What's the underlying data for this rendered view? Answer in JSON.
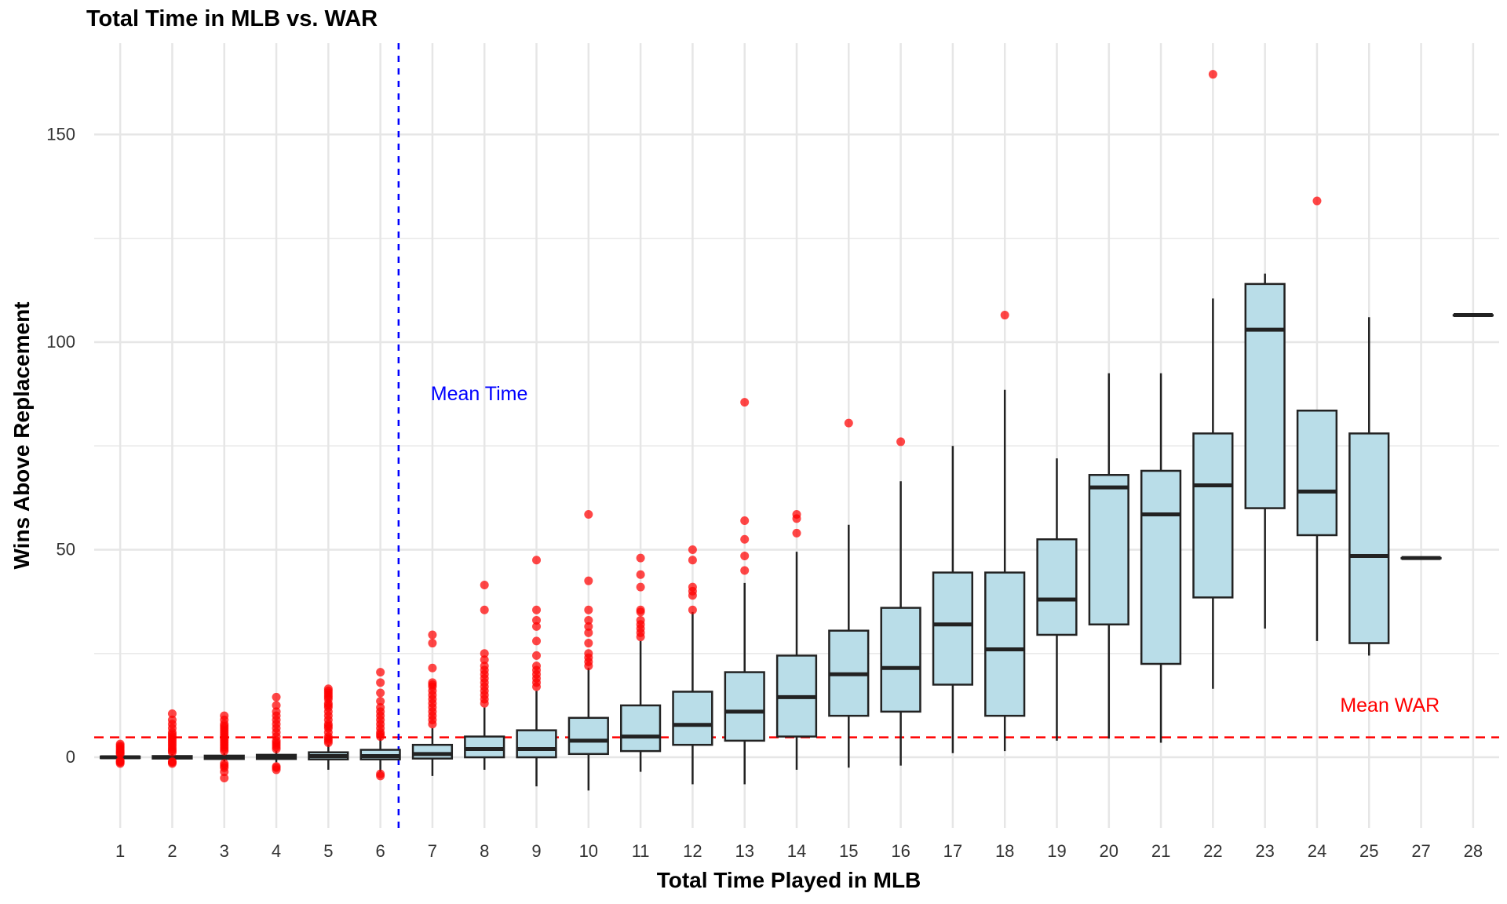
{
  "chart_data": {
    "type": "boxplot",
    "title": "Total Time in MLB vs. WAR",
    "xlabel": "Total Time Played in MLB",
    "ylabel": "Wins Above Replacement",
    "ylim": [
      -17,
      172
    ],
    "yticks": [
      0,
      50,
      100,
      150
    ],
    "grid": true,
    "colors": {
      "box_fill": "#b9dde8",
      "box_stroke": "#222222",
      "outlier": "#ff0000",
      "mean_war_line": "#ff0000",
      "mean_time_line": "#0000ff",
      "grid": "#e6e6e6",
      "axis_text": "#333333"
    },
    "categories": [
      "1",
      "2",
      "3",
      "4",
      "5",
      "6",
      "7",
      "8",
      "9",
      "10",
      "11",
      "12",
      "13",
      "14",
      "15",
      "16",
      "17",
      "18",
      "19",
      "20",
      "21",
      "22",
      "23",
      "24",
      "25",
      "27",
      "28"
    ],
    "boxes": [
      {
        "q1": -0.2,
        "median": 0.0,
        "q3": 0.2,
        "lower": -0.5,
        "upper": 0.6,
        "outliers": [
          -1.5,
          -1.2,
          -1.0,
          -0.8,
          0.8,
          1.0,
          1.3,
          1.6,
          2.0,
          2.4,
          2.8,
          3.2
        ]
      },
      {
        "q1": -0.3,
        "median": 0.0,
        "q3": 0.3,
        "lower": -0.8,
        "upper": 0.8,
        "outliers": [
          -1.5,
          -1.2,
          -1.0,
          1.2,
          1.6,
          2.0,
          2.5,
          3.0,
          3.5,
          4.0,
          4.5,
          5.0,
          5.5,
          6.0,
          7.0,
          8.0,
          9.0,
          10.5
        ]
      },
      {
        "q1": -0.4,
        "median": 0.0,
        "q3": 0.4,
        "lower": -1.0,
        "upper": 1.0,
        "outliers": [
          -5.0,
          -3.5,
          -2.5,
          -2.0,
          -1.5,
          1.5,
          2.0,
          2.5,
          3.0,
          3.5,
          4.0,
          4.5,
          5.0,
          5.5,
          6.0,
          6.5,
          7.0,
          7.5,
          8.0,
          9.0,
          10.0
        ]
      },
      {
        "q1": -0.4,
        "median": 0.2,
        "q3": 0.6,
        "lower": -1.2,
        "upper": 1.5,
        "outliers": [
          -3.0,
          -2.5,
          -2.2,
          2.0,
          2.5,
          3.0,
          3.5,
          4.0,
          5.0,
          6.0,
          7.0,
          8.0,
          9.0,
          10.0,
          11.0,
          12.5,
          14.5
        ]
      },
      {
        "q1": -0.5,
        "median": 0.3,
        "q3": 1.2,
        "lower": -3.0,
        "upper": 3.0,
        "outliers": [
          3.5,
          4.0,
          4.5,
          5.0,
          6.0,
          7.0,
          7.5,
          8.0,
          9.0,
          10.0,
          11.0,
          12.0,
          12.5,
          13.0,
          14.0,
          14.5,
          15.0,
          15.5,
          16.0,
          16.5
        ]
      },
      {
        "q1": -0.5,
        "median": 0.3,
        "q3": 1.8,
        "lower": -3.5,
        "upper": 4.5,
        "outliers": [
          -4.5,
          -4.0,
          5.0,
          5.5,
          6.0,
          7.0,
          8.0,
          9.0,
          10.0,
          11.0,
          12.0,
          13.5,
          15.5,
          18.0,
          20.5
        ]
      },
      {
        "q1": -0.3,
        "median": 0.8,
        "q3": 3.0,
        "lower": -4.5,
        "upper": 7.0,
        "outliers": [
          8.0,
          9.0,
          10.0,
          11.0,
          12.0,
          13.0,
          14.0,
          15.0,
          16.0,
          17.0,
          17.5,
          18.0,
          21.5,
          27.5,
          29.5
        ]
      },
      {
        "q1": 0.0,
        "median": 2.0,
        "q3": 5.0,
        "lower": -3.0,
        "upper": 12.0,
        "outliers": [
          13.0,
          14.0,
          15.0,
          16.0,
          17.0,
          18.0,
          19.0,
          20.0,
          21.0,
          22.0,
          23.5,
          25.0,
          35.5,
          41.5
        ]
      },
      {
        "q1": 0.0,
        "median": 2.0,
        "q3": 6.5,
        "lower": -7.0,
        "upper": 16.0,
        "outliers": [
          17.0,
          18.0,
          19.0,
          20.0,
          21.0,
          22.0,
          24.5,
          28.0,
          31.5,
          33.0,
          35.5,
          47.5
        ]
      },
      {
        "q1": 0.8,
        "median": 4.0,
        "q3": 9.5,
        "lower": -8.0,
        "upper": 21.5,
        "outliers": [
          22.0,
          23.0,
          24.0,
          25.0,
          27.5,
          30.0,
          31.5,
          33.0,
          35.5,
          42.5,
          58.5
        ]
      },
      {
        "q1": 1.5,
        "median": 5.0,
        "q3": 12.5,
        "lower": -3.5,
        "upper": 28.0,
        "outliers": [
          29.0,
          30.0,
          31.0,
          32.0,
          33.0,
          35.0,
          35.5,
          41.0,
          44.0,
          48.0
        ]
      },
      {
        "q1": 3.0,
        "median": 7.8,
        "q3": 15.8,
        "lower": -6.5,
        "upper": 35.0,
        "outliers": [
          35.5,
          39.0,
          40.0,
          41.0,
          47.5,
          50.0
        ]
      },
      {
        "q1": 4.0,
        "median": 11.0,
        "q3": 20.5,
        "lower": -6.5,
        "upper": 42.0,
        "outliers": [
          45.0,
          48.5,
          52.5,
          57.0,
          85.5
        ]
      },
      {
        "q1": 5.0,
        "median": 14.5,
        "q3": 24.5,
        "lower": -3.0,
        "upper": 49.5,
        "outliers": [
          54.0,
          57.5,
          58.5
        ]
      },
      {
        "q1": 10.0,
        "median": 20.0,
        "q3": 30.5,
        "lower": -2.5,
        "upper": 56.0,
        "outliers": [
          80.5
        ]
      },
      {
        "q1": 11.0,
        "median": 21.5,
        "q3": 36.0,
        "lower": -2.0,
        "upper": 66.5,
        "outliers": [
          76.0
        ]
      },
      {
        "q1": 17.5,
        "median": 32.0,
        "q3": 44.5,
        "lower": 1.0,
        "upper": 75.0,
        "outliers": []
      },
      {
        "q1": 10.0,
        "median": 26.0,
        "q3": 44.5,
        "lower": 1.5,
        "upper": 88.5,
        "outliers": [
          106.5
        ]
      },
      {
        "q1": 29.5,
        "median": 38.0,
        "q3": 52.5,
        "lower": 4.0,
        "upper": 72.0,
        "outliers": []
      },
      {
        "q1": 32.0,
        "median": 65.0,
        "q3": 68.0,
        "lower": 4.5,
        "upper": 92.5,
        "outliers": []
      },
      {
        "q1": 22.5,
        "median": 58.5,
        "q3": 69.0,
        "lower": 3.5,
        "upper": 92.5,
        "outliers": []
      },
      {
        "q1": 38.5,
        "median": 65.5,
        "q3": 78.0,
        "lower": 16.5,
        "upper": 110.5,
        "outliers": [
          164.5
        ]
      },
      {
        "q1": 60.0,
        "median": 103.0,
        "q3": 114.0,
        "lower": 31.0,
        "upper": 116.5,
        "outliers": []
      },
      {
        "q1": 53.5,
        "median": 64.0,
        "q3": 83.5,
        "lower": 28.0,
        "upper": 83.5,
        "outliers": [
          134.0
        ]
      },
      {
        "q1": 27.5,
        "median": 48.5,
        "q3": 78.0,
        "lower": 24.5,
        "upper": 106.0,
        "outliers": []
      },
      {
        "q1": 48.0,
        "median": 48.0,
        "q3": 48.0,
        "lower": 48.0,
        "upper": 48.0,
        "outliers": []
      },
      {
        "q1": 106.5,
        "median": 106.5,
        "q3": 106.5,
        "lower": 106.5,
        "upper": 106.5,
        "outliers": []
      }
    ],
    "mean_war": 4.8,
    "mean_war_label": "Mean WAR",
    "mean_time_position": 6.35,
    "mean_time_label": "Mean Time",
    "annotations": [
      {
        "text": "Mean Time",
        "x": 7.9,
        "y": 86,
        "color": "#0000ff"
      },
      {
        "text": "Mean WAR",
        "x": 25.4,
        "y": 11,
        "color": "#ff0000"
      }
    ]
  }
}
